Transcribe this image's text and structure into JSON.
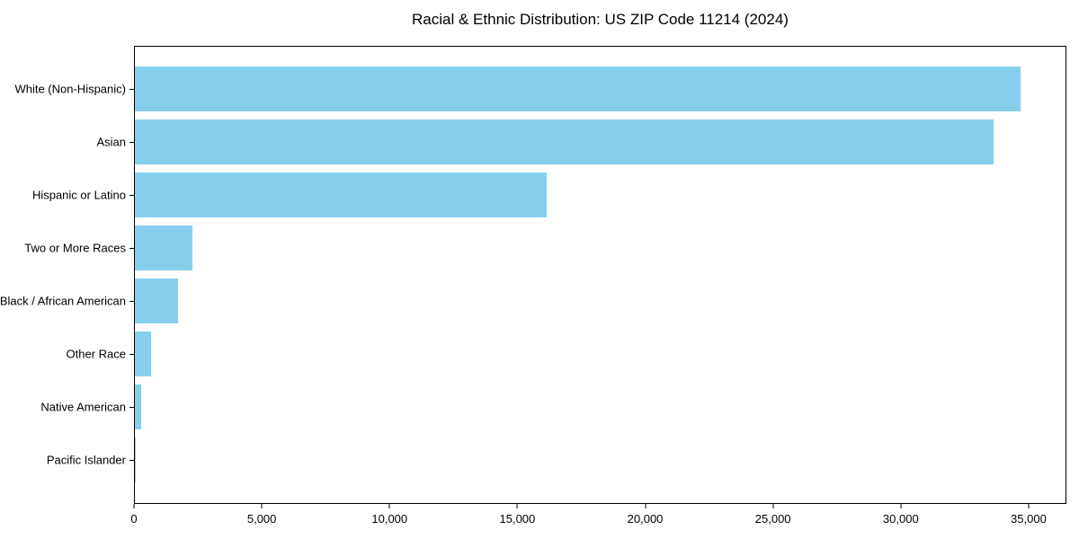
{
  "chart_data": {
    "type": "bar",
    "orientation": "horizontal",
    "title": "Racial & Ethnic Distribution: US ZIP Code 11214 (2024)",
    "categories": [
      "White (Non-Hispanic)",
      "Asian",
      "Hispanic or Latino",
      "Two or More Races",
      "Black / African American",
      "Other Race",
      "Native American",
      "Pacific Islander"
    ],
    "values": [
      34700,
      33650,
      16150,
      2250,
      1700,
      630,
      250,
      20
    ],
    "bar_color": "#87CEEB",
    "axis_color": "#000000",
    "background_color": "#FFFFFF",
    "xlabel": "",
    "ylabel": "",
    "xlim": [
      0,
      36480
    ],
    "x_ticks": [
      0,
      5000,
      10000,
      15000,
      20000,
      25000,
      30000,
      35000
    ],
    "x_tick_labels": [
      "0",
      "5,000",
      "10,000",
      "15,000",
      "20,000",
      "25,000",
      "30,000",
      "35,000"
    ],
    "grid": false,
    "legend_position": "none"
  }
}
